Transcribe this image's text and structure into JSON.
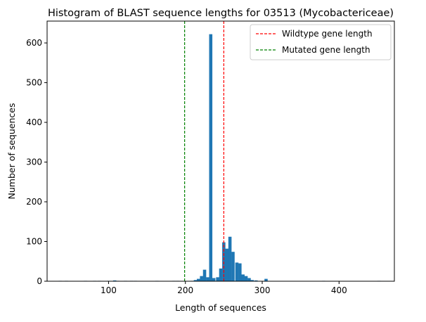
{
  "chart_data": {
    "type": "bar",
    "title": "Histogram of BLAST sequence lengths for 03513 (Mycobactericeae)",
    "xlabel": "Length of sequences",
    "ylabel": "Number of sequences",
    "xlim": [
      20,
      472
    ],
    "ylim": [
      0,
      655
    ],
    "bin_width": 4.18,
    "x_ticks": [
      100,
      200,
      300,
      400
    ],
    "y_ticks": [
      0,
      100,
      200,
      300,
      400,
      500,
      600
    ],
    "bar_color": "#1f77b4",
    "grid": false,
    "legend_position": "top-right",
    "bins": [
      {
        "x": 37,
        "count": 1
      },
      {
        "x": 45,
        "count": 1
      },
      {
        "x": 70,
        "count": 1
      },
      {
        "x": 82,
        "count": 1
      },
      {
        "x": 88,
        "count": 1
      },
      {
        "x": 100,
        "count": 1
      },
      {
        "x": 108,
        "count": 2
      },
      {
        "x": 112,
        "count": 1
      },
      {
        "x": 122,
        "count": 1
      },
      {
        "x": 130,
        "count": 1
      },
      {
        "x": 135,
        "count": 1
      },
      {
        "x": 163,
        "count": 1
      },
      {
        "x": 185,
        "count": 1
      },
      {
        "x": 190,
        "count": 1
      },
      {
        "x": 209,
        "count": 1
      },
      {
        "x": 213,
        "count": 3
      },
      {
        "x": 217,
        "count": 6
      },
      {
        "x": 221,
        "count": 13
      },
      {
        "x": 225,
        "count": 29
      },
      {
        "x": 229,
        "count": 10
      },
      {
        "x": 233,
        "count": 622
      },
      {
        "x": 237,
        "count": 8
      },
      {
        "x": 242,
        "count": 10
      },
      {
        "x": 246,
        "count": 32
      },
      {
        "x": 250,
        "count": 98
      },
      {
        "x": 254,
        "count": 82
      },
      {
        "x": 258,
        "count": 112
      },
      {
        "x": 262,
        "count": 74
      },
      {
        "x": 267,
        "count": 47
      },
      {
        "x": 271,
        "count": 45
      },
      {
        "x": 275,
        "count": 17
      },
      {
        "x": 279,
        "count": 13
      },
      {
        "x": 283,
        "count": 8
      },
      {
        "x": 287,
        "count": 3
      },
      {
        "x": 292,
        "count": 2
      },
      {
        "x": 305,
        "count": 6
      },
      {
        "x": 380,
        "count": 1
      },
      {
        "x": 452,
        "count": 1
      }
    ],
    "reference_lines": [
      {
        "name": "Wildtype gene length",
        "x": 250,
        "color": "#ff0000",
        "style": "dashed"
      },
      {
        "name": "Mutated gene length",
        "x": 199,
        "color": "#008000",
        "style": "dashed"
      }
    ]
  }
}
